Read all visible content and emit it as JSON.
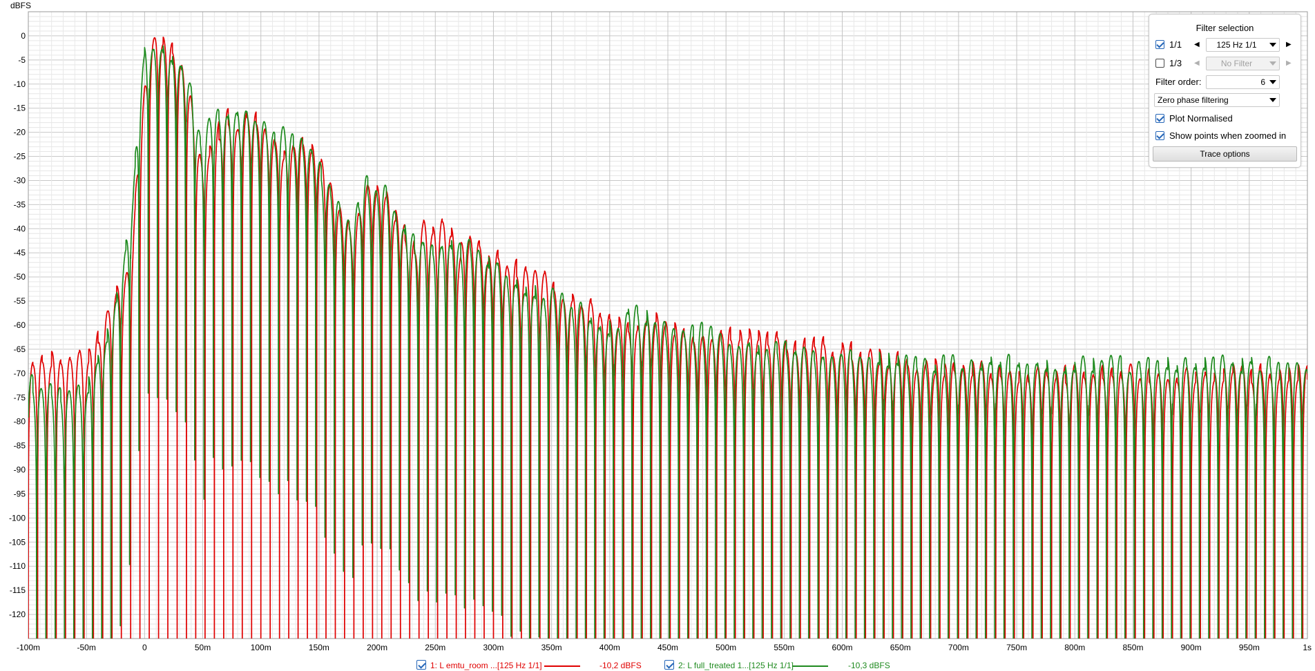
{
  "chart_data": {
    "type": "line",
    "title": "",
    "ylabel": "dBFS",
    "xlabel": "",
    "xlim": [
      -0.1,
      1.0
    ],
    "ylim": [
      -125,
      5
    ],
    "grid": true,
    "yticks": [
      0,
      -5,
      -10,
      -15,
      -20,
      -25,
      -30,
      -35,
      -40,
      -45,
      -50,
      -55,
      -60,
      -65,
      -70,
      -75,
      -80,
      -85,
      -90,
      -95,
      -100,
      -105,
      -110,
      -115,
      -120
    ],
    "xticks": [
      {
        "v": -0.1,
        "label": "-100m"
      },
      {
        "v": -0.05,
        "label": "-50m"
      },
      {
        "v": 0.0,
        "label": "0"
      },
      {
        "v": 0.05,
        "label": "50m"
      },
      {
        "v": 0.1,
        "label": "100m"
      },
      {
        "v": 0.15,
        "label": "150m"
      },
      {
        "v": 0.2,
        "label": "200m"
      },
      {
        "v": 0.25,
        "label": "250m"
      },
      {
        "v": 0.3,
        "label": "300m"
      },
      {
        "v": 0.35,
        "label": "350m"
      },
      {
        "v": 0.4,
        "label": "400m"
      },
      {
        "v": 0.45,
        "label": "450m"
      },
      {
        "v": 0.5,
        "label": "500m"
      },
      {
        "v": 0.55,
        "label": "550m"
      },
      {
        "v": 0.6,
        "label": "600m"
      },
      {
        "v": 0.65,
        "label": "650m"
      },
      {
        "v": 0.7,
        "label": "700m"
      },
      {
        "v": 0.75,
        "label": "750m"
      },
      {
        "v": 0.8,
        "label": "800m"
      },
      {
        "v": 0.85,
        "label": "850m"
      },
      {
        "v": 0.9,
        "label": "900m"
      },
      {
        "v": 0.95,
        "label": "950m"
      },
      {
        "v": 1.0,
        "label": "1s"
      }
    ],
    "carrier_hz": 125,
    "series": [
      {
        "name": "1: L emtu_room ...[125 Hz 1/1]",
        "value_label": "-10,2 dBFS",
        "color": "#e00000",
        "envelope_x": [
          -0.1,
          -0.07,
          -0.05,
          -0.04,
          -0.03,
          -0.02,
          -0.01,
          -0.005,
          0.0,
          0.01,
          0.02,
          0.03,
          0.04,
          0.045,
          0.05,
          0.06,
          0.07,
          0.08,
          0.09,
          0.1,
          0.11,
          0.12,
          0.13,
          0.14,
          0.15,
          0.16,
          0.17,
          0.18,
          0.19,
          0.2,
          0.21,
          0.22,
          0.23,
          0.24,
          0.25,
          0.26,
          0.27,
          0.28,
          0.29,
          0.3,
          0.32,
          0.34,
          0.36,
          0.38,
          0.4,
          0.42,
          0.44,
          0.46,
          0.48,
          0.5,
          0.52,
          0.54,
          0.56,
          0.58,
          0.6,
          0.62,
          0.64,
          0.66,
          0.7,
          0.75,
          0.8,
          0.85,
          0.9,
          0.95,
          1.0
        ],
        "envelope_y": [
          -69,
          -66,
          -67,
          -62,
          -55,
          -53,
          -41,
          -22,
          -9,
          -0.5,
          -2,
          -5,
          -13,
          -22,
          -26,
          -22,
          -16,
          -19,
          -17,
          -16,
          -22,
          -24,
          -21,
          -23,
          -26,
          -30,
          -37,
          -42,
          -32,
          -31,
          -34,
          -39,
          -44,
          -40,
          -41,
          -38,
          -45,
          -40,
          -44,
          -46,
          -48,
          -50,
          -53,
          -55,
          -58,
          -60,
          -58,
          -61,
          -62,
          -61,
          -62,
          -63,
          -64,
          -64,
          -65,
          -66,
          -67,
          -68,
          -69,
          -70,
          -70,
          -70,
          -70,
          -70,
          -70
        ]
      },
      {
        "name": "2: L full_treated 1...[125 Hz 1/1]",
        "value_label": "-10,3 dBFS",
        "color": "#1e8a1e",
        "envelope_x": [
          -0.1,
          -0.07,
          -0.05,
          -0.04,
          -0.03,
          -0.02,
          -0.01,
          -0.005,
          0.0,
          0.01,
          0.02,
          0.03,
          0.04,
          0.045,
          0.05,
          0.06,
          0.07,
          0.08,
          0.09,
          0.1,
          0.11,
          0.12,
          0.13,
          0.14,
          0.15,
          0.16,
          0.17,
          0.18,
          0.19,
          0.2,
          0.21,
          0.22,
          0.23,
          0.24,
          0.25,
          0.26,
          0.27,
          0.28,
          0.29,
          0.3,
          0.32,
          0.34,
          0.36,
          0.38,
          0.4,
          0.42,
          0.44,
          0.46,
          0.48,
          0.5,
          0.52,
          0.54,
          0.56,
          0.58,
          0.6,
          0.62,
          0.64,
          0.66,
          0.7,
          0.75,
          0.8,
          0.85,
          0.9,
          0.95,
          1.0
        ],
        "envelope_y": [
          -71,
          -74,
          -73,
          -67,
          -60,
          -49,
          -32,
          -14,
          -3,
          -0.2,
          -2.5,
          -6,
          -10,
          -18,
          -23,
          -15,
          -15,
          -16,
          -15,
          -17,
          -21,
          -20,
          -21,
          -23,
          -27,
          -32,
          -38,
          -39,
          -31,
          -31,
          -33,
          -37,
          -42,
          -44,
          -43,
          -41,
          -44,
          -44,
          -45,
          -48,
          -51,
          -53,
          -55,
          -57,
          -60,
          -57,
          -59,
          -62,
          -61,
          -63,
          -64,
          -64,
          -64,
          -65,
          -66,
          -66,
          -67,
          -68,
          -68,
          -68,
          -68,
          -68,
          -68,
          -68,
          -68
        ]
      }
    ]
  },
  "panel": {
    "title": "Filter selection",
    "row1": {
      "label": "1/1",
      "value": "125 Hz 1/1",
      "checked": true
    },
    "row2": {
      "label": "1/3",
      "value": "No Filter",
      "checked": false
    },
    "filter_order_label": "Filter order:",
    "filter_order_value": "6",
    "phase_mode": "Zero phase filtering",
    "plot_normalised": "Plot Normalised",
    "show_points": "Show points when zoomed in",
    "trace_options": "Trace options"
  }
}
